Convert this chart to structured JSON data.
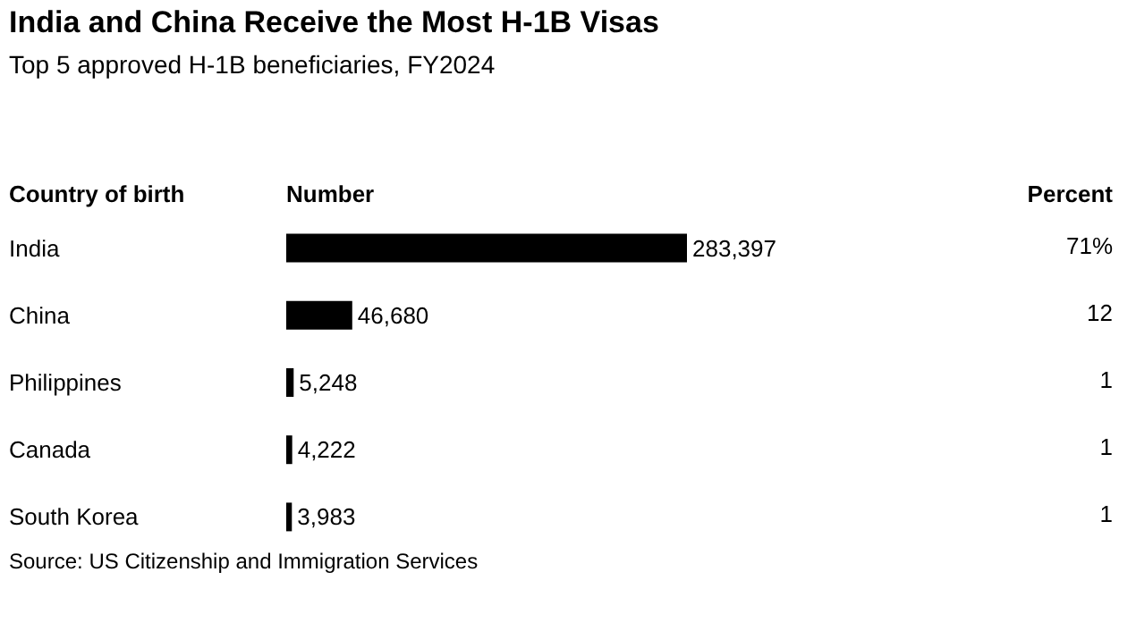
{
  "chart_data": {
    "type": "bar",
    "orientation": "horizontal",
    "title": "India and China Receive the Most H-1B Visas",
    "subtitle": "Top 5 approved H-1B beneficiaries, FY2024",
    "ylabel": "Country of birth",
    "xlabel": "Number",
    "categories": [
      "India",
      "China",
      "Philippines",
      "Canada",
      "South Korea"
    ],
    "values": [
      283397,
      46680,
      5248,
      4222,
      3983
    ],
    "color": "#000000",
    "value_labels": [
      "283,397",
      "46,680",
      "5,248",
      "4,222",
      "3,983"
    ],
    "annotations": [
      "Percent",
      "71%",
      "12",
      "1",
      "1",
      "1",
      "Source: US Citizenship and Immigration Services"
    ]
  }
}
